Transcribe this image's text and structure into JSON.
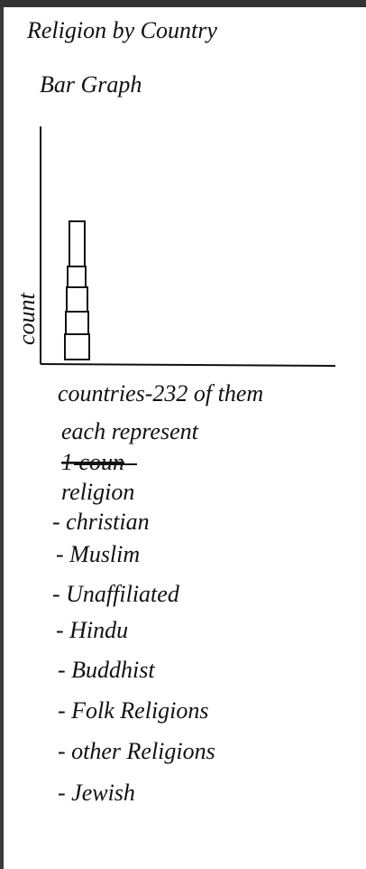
{
  "header": {
    "title": "Religion by Country",
    "subtitle": "Bar Graph"
  },
  "sketch": {
    "y_axis_label": "count",
    "x_axis_label": "countries-232 of them"
  },
  "note": {
    "line1": "each represent",
    "struck": "1 coun",
    "line2": "religion"
  },
  "list": [
    "- christian",
    "- Muslim",
    "- Unaffiliated",
    "- Hindu",
    "- Buddhist",
    "- Folk Religions",
    "- other Religions",
    "- Jewish"
  ]
}
